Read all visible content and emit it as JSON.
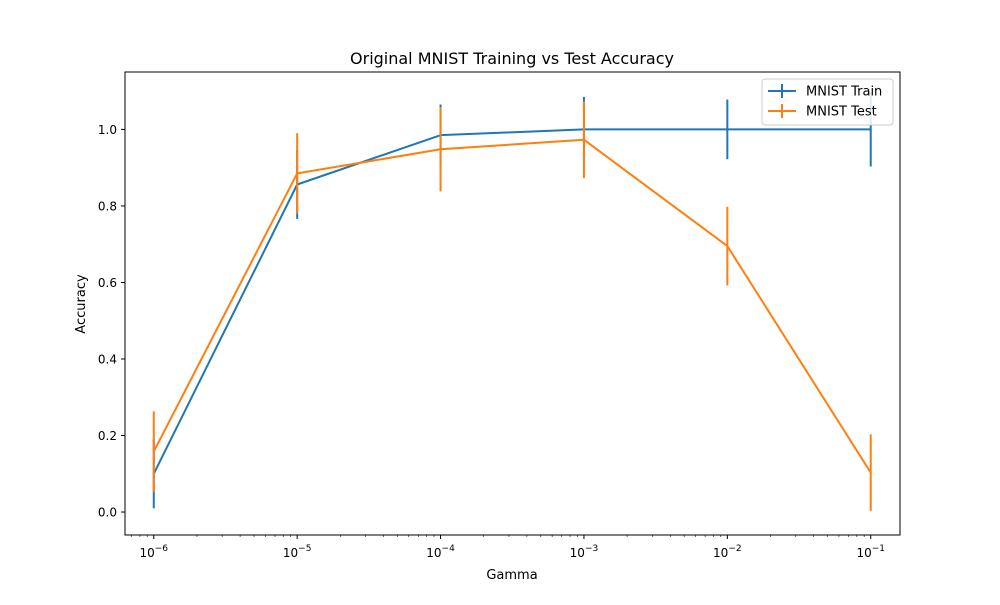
{
  "chart_data": {
    "type": "line",
    "title": "Original MNIST Training vs Test Accuracy",
    "xlabel": "Gamma",
    "ylabel": "Accuracy",
    "x_scale": "log",
    "x": [
      1e-06,
      1e-05,
      0.0001,
      0.001,
      0.01,
      0.1
    ],
    "x_tick_labels": [
      {
        "base": "10",
        "exp": "−6"
      },
      {
        "base": "10",
        "exp": "−5"
      },
      {
        "base": "10",
        "exp": "−4"
      },
      {
        "base": "10",
        "exp": "−3"
      },
      {
        "base": "10",
        "exp": "−2"
      },
      {
        "base": "10",
        "exp": "−1"
      }
    ],
    "y_ticks": [
      0.0,
      0.2,
      0.4,
      0.6,
      0.8,
      1.0
    ],
    "y_tick_labels": [
      "0.0",
      "0.2",
      "0.4",
      "0.6",
      "0.8",
      "1.0"
    ],
    "xlim": [
      6.3e-07,
      0.16
    ],
    "ylim": [
      -0.06,
      1.15
    ],
    "legend_position": "top-right",
    "grid": false,
    "series": [
      {
        "name": "MNIST Train",
        "color": "#1f77b4",
        "values": [
          0.1,
          0.856,
          0.985,
          1.0,
          1.0,
          1.0
        ],
        "errors": [
          0.09,
          0.09,
          0.08,
          0.085,
          0.078,
          0.097
        ]
      },
      {
        "name": "MNIST Test",
        "color": "#ff7f0e",
        "values": [
          0.158,
          0.885,
          0.948,
          0.973,
          0.695,
          0.103
        ],
        "errors": [
          0.105,
          0.105,
          0.11,
          0.1,
          0.103,
          0.1
        ]
      }
    ]
  }
}
